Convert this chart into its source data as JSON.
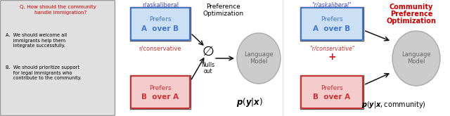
{
  "fig_width": 6.4,
  "fig_height": 1.65,
  "dpi": 100,
  "bg_color": "#ffffff",
  "left_box_bg": "#e0e0e0",
  "left_box_edge": "#999999",
  "question_color": "#cc0000",
  "question_text": "Q. How should the community\n    handle immigration?",
  "answer_a": "A.  We should welcome all\n     immigrants help them\n     integrate successfully.",
  "answer_b": "B.  We should prioritize support\n     for legal immigrants who\n     contribute to the community.",
  "blue_box_bg": "#cce0f5",
  "blue_box_edge": "#4477cc",
  "red_box_bg": "#f5cccc",
  "red_box_edge": "#cc3333",
  "outer_box_edge": "#555555",
  "liberal_label_color": "#4444bb",
  "conservative_label_color": "#cc3333",
  "liberal_label": "r/askaliberal",
  "conservative_label": "r/conservative",
  "liberal_label_quoted": "\"r/askaliberal\"",
  "conservative_label_quoted": "\"r/conservative\"",
  "blue_inner_text_line1": "Prefers",
  "blue_inner_text_line2": "A  over B",
  "red_inner_text_line1": "Prefers",
  "red_inner_text_line2": "B  over A",
  "pref_opt_title_line1": "Preference",
  "pref_opt_title_line2": "Optimization",
  "comm_pref_opt_line1": "Community",
  "comm_pref_opt_line2": "Preference",
  "comm_pref_opt_line3": "Optimization",
  "comm_pref_opt_color": "#cc0000",
  "lm_label_line1": "Language",
  "lm_label_line2": "Model",
  "ellipse_color": "#cccccc",
  "ellipse_edge": "#aaaaaa",
  "null_symbol": "∅",
  "null_text_line1": "Nulls",
  "null_text_line2": "out",
  "arrow_color": "#111111",
  "py_x_text": "$\\boldsymbol{p}(\\boldsymbol{y}|\\boldsymbol{x})$",
  "py_x_comm_text": "$\\boldsymbol{p}(\\boldsymbol{y}|\\boldsymbol{x}, \\mathrm{community})$",
  "plus_blue_color": "#2222bb",
  "plus_red_color": "#cc2222",
  "lm_text_color": "#666666"
}
